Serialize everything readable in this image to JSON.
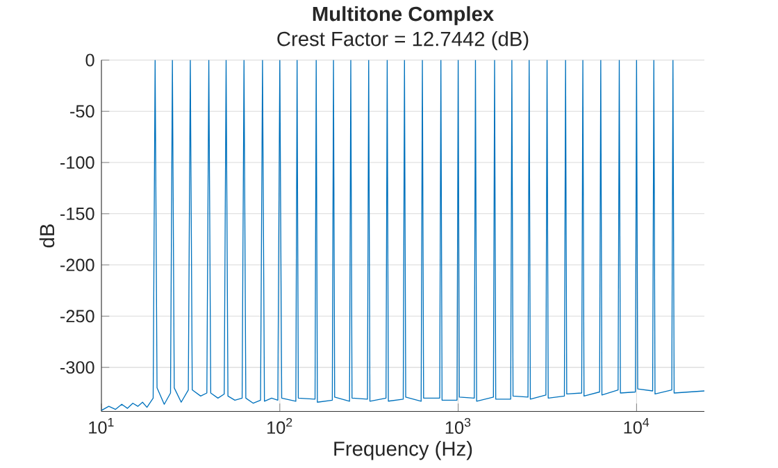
{
  "chart_data": {
    "type": "line",
    "title": "Multitone Complex",
    "subtitle": "Crest Factor = 12.7442 (dB)",
    "xlabel": "Frequency (Hz)",
    "ylabel": "dB",
    "log": "x",
    "grid": true,
    "xlim": [
      10,
      24000
    ],
    "ylim": [
      -343,
      0
    ],
    "xticks": [
      {
        "value": 10,
        "label": "10$^{1}$"
      },
      {
        "value": 100,
        "label": "10$^{2}$"
      },
      {
        "value": 1000,
        "label": "10$^{3}$"
      },
      {
        "value": 10000,
        "label": "10$^{4}$"
      }
    ],
    "yticks": [
      -300,
      -250,
      -200,
      -150,
      -100,
      -50,
      0
    ],
    "series": [
      {
        "color": "#0072bd",
        "x": [
          10,
          11,
          12,
          13,
          14,
          15,
          16,
          17,
          18,
          19.5,
          20,
          20.5,
          22.5,
          24.4,
          25,
          25.6,
          28,
          30.7,
          31.5,
          32.3,
          36,
          39,
          40,
          41,
          45,
          48.8,
          50,
          51.2,
          56,
          61.5,
          63,
          64.5,
          71,
          78,
          80,
          82,
          90,
          97.5,
          100,
          102.5,
          123,
          125,
          127,
          157.6,
          160,
          162.4,
          197,
          200,
          203,
          246,
          250,
          254,
          310,
          315,
          320,
          394,
          400,
          406,
          492,
          500,
          508,
          620,
          630,
          640,
          788,
          800,
          812,
          985,
          1000,
          1015,
          1231,
          1250,
          1269,
          1576,
          1600,
          1624,
          1970,
          2000,
          2030,
          2462,
          2500,
          2538,
          3103,
          3150,
          3197,
          3940,
          4000,
          4060,
          4925,
          5000,
          5075,
          6205,
          6300,
          6395,
          7880,
          8000,
          8120,
          9850,
          10000,
          10150,
          12310,
          12500,
          12690,
          15760,
          16000,
          16240,
          24000
        ],
        "values": [
          -342,
          -338,
          -341,
          -336,
          -340,
          -335,
          -338,
          -334,
          -339,
          -330,
          0,
          -320,
          -336,
          -325,
          0,
          -320,
          -334,
          -322,
          0,
          -322,
          -328,
          -325,
          0,
          -325,
          -330,
          -326,
          0,
          -328,
          -332,
          -330,
          0,
          -330,
          -335,
          -332,
          0,
          -333,
          -330,
          -332,
          0,
          -330,
          -333,
          0,
          -330,
          -331,
          0,
          -334,
          -332,
          0,
          -329,
          -333,
          0,
          -330,
          -331,
          0,
          -333,
          -330,
          0,
          -333,
          -331,
          0,
          -329,
          -333,
          0,
          -330,
          -330,
          0,
          -332,
          -332,
          0,
          -329,
          -330,
          0,
          -333,
          -329,
          0,
          -331,
          -331,
          0,
          -328,
          -329,
          0,
          -331,
          -327,
          0,
          -330,
          -328,
          0,
          -326,
          -325,
          0,
          -328,
          -324,
          0,
          -327,
          -322,
          0,
          -325,
          -324,
          0,
          -321,
          -323,
          0,
          -326,
          -322,
          0,
          -325,
          -323
        ]
      }
    ]
  }
}
